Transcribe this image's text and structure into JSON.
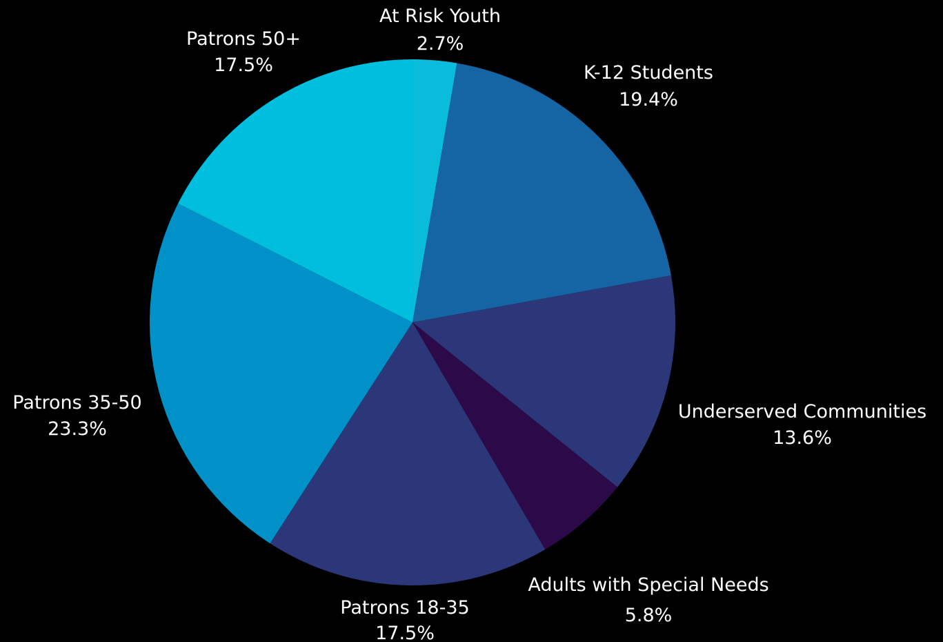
{
  "chart_data": {
    "type": "pie",
    "title": "",
    "start_angle_deg": 0,
    "direction": "clockwise",
    "slices": [
      {
        "label": "At Risk Youth",
        "pct_label": "2.7%",
        "value": 2.7,
        "color": "#0ABCDC"
      },
      {
        "label": "K-12 Students",
        "pct_label": "19.4%",
        "value": 19.4,
        "color": "#1565A5"
      },
      {
        "label": "Underserved Communities",
        "pct_label": "13.6%",
        "value": 13.6,
        "color": "#2C3779"
      },
      {
        "label": "Adults with Special Needs",
        "pct_label": "5.8%",
        "value": 5.8,
        "color": "#2C0A4A"
      },
      {
        "label": "Patrons 18-35",
        "pct_label": "17.5%",
        "value": 17.5,
        "color": "#2C3779"
      },
      {
        "label": "Patrons 35-50",
        "pct_label": "23.3%",
        "value": 23.3,
        "color": "#0091C9"
      },
      {
        "label": "Patrons 50+",
        "pct_label": "17.5%",
        "value": 17.5,
        "color": "#00BEDE"
      }
    ],
    "label_color": "#FFFFFF",
    "background": "#000000"
  }
}
